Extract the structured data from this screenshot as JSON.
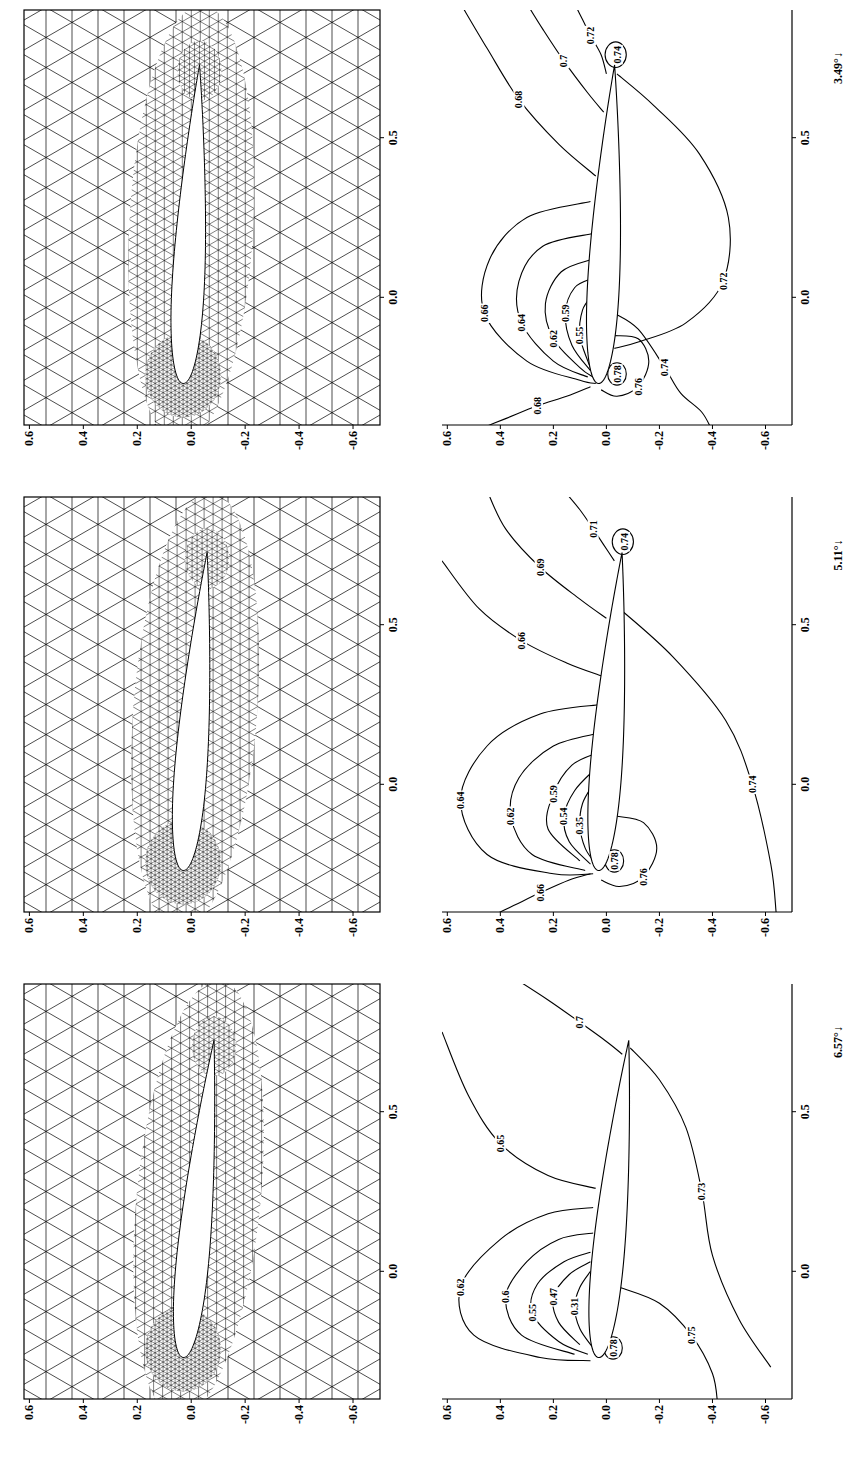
{
  "chart_data": [
    {
      "type": "mesh",
      "xlim": [
        -0.4,
        0.9
      ],
      "ylim": [
        -0.7,
        0.62
      ],
      "xticks": [
        {
          "value": 0,
          "label": "0.0"
        },
        0.5
      ],
      "yticks": [
        0.6,
        0.4,
        0.2,
        {
          "value": 0,
          "label": "0.0"
        },
        -0.2,
        -0.4,
        -0.6
      ]
    },
    {
      "type": "contour",
      "xlim": [
        -0.4,
        0.9
      ],
      "ylim": [
        -0.7,
        0.62
      ],
      "xticks": [
        {
          "value": 0,
          "label": "0.0"
        },
        0.5
      ],
      "yticks": [
        0.6,
        0.4,
        0.2,
        {
          "value": 0,
          "label": "0.0"
        },
        -0.2,
        -0.4,
        -0.6
      ],
      "angle": {
        "value": 3.49,
        "label": "3.49°↓"
      },
      "contours": [
        {
          "level": 0.74,
          "x": [
            0.76,
            0.788,
            0.8,
            0.788,
            0.76,
            0.732,
            0.72,
            0.732,
            0.76
          ],
          "y": [
            -0.075,
            -0.063,
            -0.035,
            -0.007,
            0.005,
            -0.007,
            -0.035,
            -0.063,
            -0.075
          ]
        },
        {
          "level": 0.72,
          "x": [
            0.92,
            0.87,
            0.82,
            0.76,
            0.7
          ],
          "y": [
            0.12,
            0.09,
            0.06,
            0.02,
            0.0
          ]
        },
        {
          "level": 0.7,
          "x": [
            0.92,
            0.84,
            0.74,
            0.64,
            0.58
          ],
          "y": [
            0.3,
            0.24,
            0.16,
            0.07,
            0.01
          ]
        },
        {
          "level": 0.68,
          "x": [
            0.92,
            0.78,
            0.62,
            0.48,
            0.38
          ],
          "y": [
            0.55,
            0.45,
            0.33,
            0.18,
            0.04
          ]
        },
        {
          "level": 0.72,
          "x": [
            0.7,
            0.6,
            0.45,
            0.25,
            0.05,
            -0.08,
            -0.14,
            -0.16
          ],
          "y": [
            -0.04,
            -0.18,
            -0.35,
            -0.46,
            -0.44,
            -0.3,
            -0.12,
            -0.03
          ]
        },
        {
          "level": 0.66,
          "x": [
            0.3,
            0.25,
            0.12,
            -0.05,
            -0.2,
            -0.26,
            -0.27
          ],
          "y": [
            0.06,
            0.3,
            0.44,
            0.46,
            0.3,
            0.1,
            0.04
          ]
        },
        {
          "level": 0.64,
          "x": [
            0.2,
            0.16,
            0.05,
            -0.08,
            -0.2,
            -0.25
          ],
          "y": [
            0.05,
            0.24,
            0.33,
            0.32,
            0.2,
            0.07
          ]
        },
        {
          "level": 0.62,
          "x": [
            0.12,
            0.08,
            -0.02,
            -0.13,
            -0.22,
            -0.25
          ],
          "y": [
            0.05,
            0.17,
            0.23,
            0.2,
            0.1,
            0.05
          ]
        },
        {
          "level": 0.59,
          "x": [
            0.06,
            0.03,
            -0.05,
            -0.15,
            -0.23
          ],
          "y": [
            0.05,
            0.12,
            0.155,
            0.13,
            0.06
          ]
        },
        {
          "level": 0.55,
          "x": [
            0.01,
            -0.04,
            -0.12,
            -0.2,
            -0.25
          ],
          "y": [
            0.05,
            0.09,
            0.1,
            0.07,
            0.045
          ]
        },
        {
          "level": 0.68,
          "x": [
            -0.42,
            -0.38,
            -0.34,
            -0.31,
            -0.28
          ],
          "y": [
            0.5,
            0.38,
            0.26,
            0.15,
            0.06
          ]
        },
        {
          "level": 0.78,
          "x": [
            -0.24,
            -0.215,
            -0.205,
            -0.215,
            -0.24,
            -0.265,
            -0.275,
            -0.265,
            -0.24
          ],
          "y": [
            -0.075,
            -0.065,
            -0.04,
            -0.015,
            -0.005,
            -0.015,
            -0.04,
            -0.065,
            -0.075
          ]
        },
        {
          "level": 0.76,
          "x": [
            -0.12,
            -0.13,
            -0.2,
            -0.28,
            -0.31,
            -0.29
          ],
          "y": [
            -0.03,
            -0.12,
            -0.16,
            -0.12,
            -0.04,
            0.02
          ]
        },
        {
          "level": 0.74,
          "x": [
            -0.42,
            -0.36,
            -0.3,
            -0.22,
            -0.1,
            -0.05
          ],
          "y": [
            -0.4,
            -0.36,
            -0.28,
            -0.22,
            -0.12,
            -0.03
          ]
        }
      ]
    },
    {
      "type": "mesh",
      "xlim": [
        -0.4,
        0.9
      ],
      "ylim": [
        -0.7,
        0.62
      ],
      "xticks": [
        {
          "value": 0,
          "label": "0.0"
        },
        0.5
      ],
      "yticks": [
        0.6,
        0.4,
        0.2,
        {
          "value": 0,
          "label": "0.0"
        },
        -0.2,
        -0.4,
        -0.6
      ]
    },
    {
      "type": "contour",
      "xlim": [
        -0.4,
        0.9
      ],
      "ylim": [
        -0.7,
        0.62
      ],
      "xticks": [
        {
          "value": 0,
          "label": "0.0"
        },
        0.5
      ],
      "yticks": [
        0.6,
        0.4,
        0.2,
        {
          "value": 0,
          "label": "0.0"
        },
        -0.2,
        -0.4,
        -0.6
      ],
      "angle": {
        "value": 5.11,
        "label": "5.11°↓"
      },
      "contours": [
        {
          "level": 0.74,
          "x": [
            0.76,
            0.788,
            0.8,
            0.788,
            0.76,
            0.732,
            0.72,
            0.732,
            0.76
          ],
          "y": [
            -0.102,
            -0.09,
            -0.062,
            -0.034,
            -0.022,
            -0.034,
            -0.062,
            -0.09,
            -0.102
          ]
        },
        {
          "level": 0.71,
          "x": [
            0.92,
            0.86,
            0.8,
            0.75,
            0.7
          ],
          "y": [
            0.16,
            0.1,
            0.05,
            0.01,
            -0.03
          ]
        },
        {
          "level": 0.69,
          "x": [
            0.92,
            0.8,
            0.68,
            0.58,
            0.52
          ],
          "y": [
            0.45,
            0.38,
            0.25,
            0.1,
            0.0
          ]
        },
        {
          "level": 0.66,
          "x": [
            0.7,
            0.55,
            0.45,
            0.38,
            0.34
          ],
          "y": [
            0.62,
            0.48,
            0.32,
            0.15,
            0.02
          ]
        },
        {
          "level": 0.64,
          "x": [
            0.25,
            0.22,
            0.12,
            -0.05,
            -0.22,
            -0.28,
            -0.28
          ],
          "y": [
            0.02,
            0.25,
            0.45,
            0.55,
            0.45,
            0.2,
            0.05
          ]
        },
        {
          "level": 0.62,
          "x": [
            0.16,
            0.12,
            0.02,
            -0.1,
            -0.22,
            -0.27
          ],
          "y": [
            0.03,
            0.2,
            0.33,
            0.36,
            0.28,
            0.08
          ]
        },
        {
          "level": 0.59,
          "x": [
            0.1,
            0.06,
            -0.03,
            -0.14,
            -0.24
          ],
          "y": [
            0.03,
            0.13,
            0.2,
            0.22,
            0.1
          ]
        },
        {
          "level": 0.54,
          "x": [
            0.05,
            -0.02,
            -0.1,
            -0.18,
            -0.25
          ],
          "y": [
            0.04,
            0.12,
            0.16,
            0.14,
            0.06
          ]
        },
        {
          "level": 0.35,
          "x": [
            0.0,
            -0.06,
            -0.13,
            -0.2,
            -0.25
          ],
          "y": [
            0.05,
            0.09,
            0.1,
            0.08,
            0.04
          ]
        },
        {
          "level": 0.74,
          "x": [
            0.55,
            0.4,
            0.2,
            0.0,
            -0.25,
            -0.4
          ],
          "y": [
            -0.05,
            -0.25,
            -0.45,
            -0.55,
            -0.62,
            -0.64
          ]
        },
        {
          "level": 0.78,
          "x": [
            -0.24,
            -0.215,
            -0.205,
            -0.215,
            -0.24,
            -0.265,
            -0.275,
            -0.265,
            -0.24
          ],
          "y": [
            -0.065,
            -0.055,
            -0.03,
            -0.005,
            0.005,
            -0.005,
            -0.03,
            -0.055,
            -0.065
          ]
        },
        {
          "level": 0.76,
          "x": [
            -0.1,
            -0.12,
            -0.2,
            -0.29,
            -0.32,
            -0.3
          ],
          "y": [
            -0.04,
            -0.14,
            -0.19,
            -0.14,
            -0.05,
            0.02
          ]
        },
        {
          "level": 0.66,
          "x": [
            -0.42,
            -0.38,
            -0.34,
            -0.3,
            -0.28
          ],
          "y": [
            0.45,
            0.35,
            0.25,
            0.14,
            0.06
          ]
        }
      ]
    },
    {
      "type": "mesh",
      "xlim": [
        -0.4,
        0.9
      ],
      "ylim": [
        -0.7,
        0.62
      ],
      "xticks": [
        {
          "value": 0,
          "label": "0.0"
        },
        0.5
      ],
      "yticks": [
        0.6,
        0.4,
        0.2,
        {
          "value": 0,
          "label": "0.0"
        },
        -0.2,
        -0.4,
        -0.6
      ]
    },
    {
      "type": "contour",
      "xlim": [
        -0.4,
        0.9
      ],
      "ylim": [
        -0.7,
        0.62
      ],
      "xticks": [
        {
          "value": 0,
          "label": "0.0"
        },
        0.5
      ],
      "yticks": [
        0.6,
        0.4,
        0.2,
        {
          "value": 0,
          "label": "0.0"
        },
        -0.2,
        -0.4,
        -0.6
      ],
      "angle": {
        "value": 6.57,
        "label": "6.57°↓"
      },
      "contours": [
        {
          "level": 0.7,
          "x": [
            0.92,
            0.85,
            0.78,
            0.72,
            0.68
          ],
          "y": [
            0.35,
            0.22,
            0.1,
            0.0,
            -0.06
          ]
        },
        {
          "level": 0.65,
          "x": [
            0.75,
            0.55,
            0.4,
            0.3,
            0.26
          ],
          "y": [
            0.62,
            0.52,
            0.4,
            0.22,
            0.04
          ]
        },
        {
          "level": 0.62,
          "x": [
            0.2,
            0.18,
            0.1,
            -0.05,
            -0.2,
            -0.27,
            -0.28
          ],
          "y": [
            0.05,
            0.22,
            0.4,
            0.55,
            0.5,
            0.25,
            0.06
          ]
        },
        {
          "level": 0.6,
          "x": [
            0.12,
            0.1,
            0.03,
            -0.08,
            -0.2,
            -0.26
          ],
          "y": [
            0.05,
            0.18,
            0.3,
            0.38,
            0.32,
            0.12
          ]
        },
        {
          "level": 0.55,
          "x": [
            0.06,
            0.03,
            -0.04,
            -0.13,
            -0.22,
            -0.26
          ],
          "y": [
            0.06,
            0.16,
            0.26,
            0.28,
            0.18,
            0.07
          ]
        },
        {
          "level": 0.47,
          "x": [
            0.03,
            -0.01,
            -0.08,
            -0.16,
            -0.23
          ],
          "y": [
            0.06,
            0.14,
            0.2,
            0.18,
            0.1
          ]
        },
        {
          "level": 0.31,
          "x": [
            0.0,
            -0.05,
            -0.11,
            -0.18,
            -0.24
          ],
          "y": [
            0.06,
            0.1,
            0.12,
            0.1,
            0.05
          ]
        },
        {
          "level": 0.73,
          "x": [
            0.7,
            0.6,
            0.45,
            0.25,
            0.05,
            -0.15,
            -0.3
          ],
          "y": [
            -0.09,
            -0.2,
            -0.3,
            -0.36,
            -0.4,
            -0.5,
            -0.62
          ]
        },
        {
          "level": 0.78,
          "x": [
            -0.24,
            -0.215,
            -0.205,
            -0.215,
            -0.24,
            -0.265,
            -0.275,
            -0.265,
            -0.24
          ],
          "y": [
            -0.06,
            -0.05,
            -0.025,
            0.0,
            0.01,
            0.0,
            -0.025,
            -0.05,
            -0.06
          ]
        },
        {
          "level": 0.75,
          "x": [
            -0.05,
            -0.1,
            -0.2,
            -0.32,
            -0.42
          ],
          "y": [
            -0.05,
            -0.2,
            -0.32,
            -0.4,
            -0.42
          ]
        }
      ]
    }
  ]
}
